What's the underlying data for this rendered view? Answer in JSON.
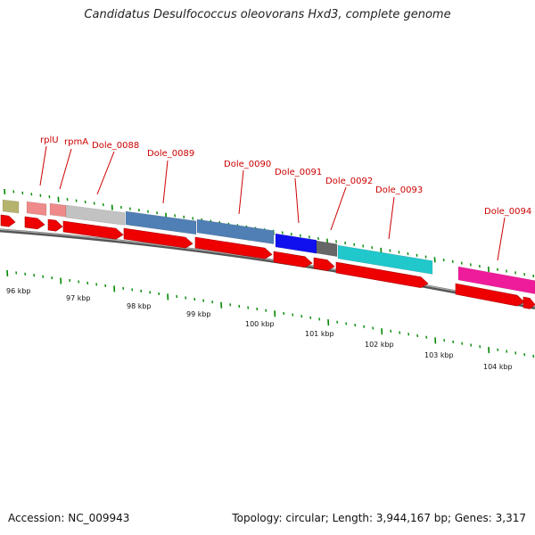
{
  "title": "Candidatus Desulfococcus oleovorans Hxd3, complete genome",
  "footer": {
    "accession": "Accession: NC_009943",
    "stats": "Topology: circular; Length: 3,944,167 bp; Genes: 3,317"
  },
  "colors": {
    "cds": "#ee0000",
    "backbone": "#808080",
    "tick": "#008800",
    "label": "#cc0000"
  },
  "scale_labels": [
    "96 kbp",
    "97 kbp",
    "98 kbp",
    "99 kbp",
    "100 kbp",
    "101 kbp",
    "102 kbp",
    "103 kbp",
    "104 kbp"
  ],
  "gene_labels": [
    "rplU",
    "rpmA",
    "Dole_0088",
    "Dole_0089",
    "Dole_0090",
    "Dole_0091",
    "Dole_0092",
    "Dole_0093",
    "Dole_0094"
  ],
  "feature_colors": [
    "#b5b36e",
    "#ee8a8a",
    "#ee8a8a",
    "#c2c2c2",
    "#4f7fb5",
    "#4f7fb5",
    "#1010ee",
    "#666666",
    "#20c8cc",
    "#ee1c9a"
  ]
}
